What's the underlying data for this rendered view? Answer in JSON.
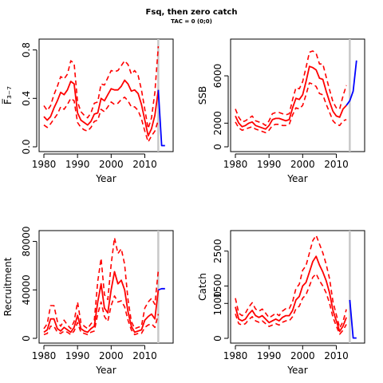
{
  "title": "Fsq, then zero catch",
  "subtitle": "TAC = 0 (0;0)",
  "colors": {
    "estimate": "#ff0000",
    "projection": "#0000ff",
    "divider": "#c8c8c8",
    "axis": "#000000"
  },
  "chart_data": [
    {
      "type": "line",
      "id": "f",
      "xlabel": "Year",
      "ylabel": "F̅₃₋₇",
      "xlim": [
        1980,
        2017
      ],
      "ylim": [
        0,
        0.85
      ],
      "xticks": [
        1980,
        1990,
        2000,
        2010
      ],
      "xtick_labels": [
        "1980",
        "1990",
        "2000",
        "2010"
      ],
      "yticks": [
        0,
        0.4,
        0.8
      ],
      "ytick_labels": [
        "0.0",
        "0.4",
        "0.8"
      ],
      "divider_x": 2014,
      "x": [
        1980,
        1981,
        1982,
        1983,
        1984,
        1985,
        1986,
        1987,
        1988,
        1989,
        1990,
        1991,
        1992,
        1993,
        1994,
        1995,
        1996,
        1997,
        1998,
        1999,
        2000,
        2001,
        2002,
        2003,
        2004,
        2005,
        2006,
        2007,
        2008,
        2009,
        2010,
        2011,
        2012,
        2013,
        2014
      ],
      "series": [
        {
          "role": "estimate",
          "style": "solid",
          "values": [
            0.25,
            0.22,
            0.25,
            0.32,
            0.38,
            0.45,
            0.43,
            0.47,
            0.54,
            0.52,
            0.28,
            0.22,
            0.2,
            0.18,
            0.21,
            0.27,
            0.28,
            0.4,
            0.38,
            0.43,
            0.48,
            0.47,
            0.47,
            0.5,
            0.55,
            0.52,
            0.46,
            0.47,
            0.44,
            0.35,
            0.22,
            0.09,
            0.15,
            0.26,
            0.47
          ]
        },
        {
          "role": "lower",
          "style": "dashed",
          "values": [
            0.18,
            0.16,
            0.19,
            0.23,
            0.27,
            0.33,
            0.31,
            0.35,
            0.4,
            0.38,
            0.2,
            0.16,
            0.14,
            0.13,
            0.16,
            0.21,
            0.22,
            0.31,
            0.29,
            0.33,
            0.37,
            0.35,
            0.36,
            0.39,
            0.41,
            0.38,
            0.33,
            0.33,
            0.3,
            0.23,
            0.13,
            0.04,
            0.09,
            0.13,
            0.22
          ]
        },
        {
          "role": "upper",
          "style": "dashed",
          "values": [
            0.34,
            0.3,
            0.34,
            0.43,
            0.5,
            0.58,
            0.56,
            0.6,
            0.71,
            0.69,
            0.37,
            0.29,
            0.26,
            0.24,
            0.28,
            0.36,
            0.37,
            0.52,
            0.51,
            0.57,
            0.63,
            0.62,
            0.63,
            0.67,
            0.71,
            0.68,
            0.6,
            0.63,
            0.59,
            0.47,
            0.31,
            0.15,
            0.24,
            0.45,
            0.83
          ]
        }
      ],
      "projection": {
        "x": [
          2014,
          2015,
          2016
        ],
        "values": [
          0.47,
          0.01,
          0.01
        ]
      }
    },
    {
      "type": "line",
      "id": "ssb",
      "xlabel": "Year",
      "ylabel": "SSB",
      "xlim": [
        1980,
        2017
      ],
      "ylim": [
        0,
        8700
      ],
      "xticks": [
        1980,
        1990,
        2000,
        2010
      ],
      "xtick_labels": [
        "1980",
        "1990",
        "2000",
        "2010"
      ],
      "yticks": [
        0,
        2000,
        6000
      ],
      "ytick_labels": [
        "0",
        "2000",
        "6000"
      ],
      "divider_x": 2014,
      "x": [
        1980,
        1981,
        1982,
        1983,
        1984,
        1985,
        1986,
        1987,
        1988,
        1989,
        1990,
        1991,
        1992,
        1993,
        1994,
        1995,
        1996,
        1997,
        1998,
        1999,
        2000,
        2001,
        2002,
        2003,
        2004,
        2005,
        2006,
        2007,
        2008,
        2009,
        2010,
        2011,
        2012,
        2013
      ],
      "series": [
        {
          "role": "estimate",
          "style": "solid",
          "values": [
            2600,
            2000,
            1700,
            1800,
            2000,
            2100,
            1800,
            1700,
            1600,
            1500,
            1800,
            2300,
            2400,
            2400,
            2300,
            2200,
            2300,
            3300,
            4100,
            4000,
            4400,
            5500,
            6800,
            6700,
            6500,
            5800,
            5700,
            4700,
            3800,
            3000,
            2600,
            2500,
            3200,
            3500
          ]
        },
        {
          "role": "lower",
          "style": "dashed",
          "values": [
            2100,
            1600,
            1400,
            1500,
            1600,
            1700,
            1500,
            1400,
            1300,
            1200,
            1400,
            1800,
            1900,
            1900,
            1800,
            1800,
            1900,
            2700,
            3300,
            3200,
            3500,
            4400,
            5400,
            5300,
            5100,
            4500,
            4400,
            3600,
            2900,
            2200,
            1900,
            1800,
            2200,
            2300
          ]
        },
        {
          "role": "upper",
          "style": "dashed",
          "values": [
            3200,
            2500,
            2100,
            2200,
            2400,
            2600,
            2200,
            2100,
            2000,
            1800,
            2200,
            2800,
            2900,
            2900,
            2800,
            2700,
            2800,
            4000,
            5000,
            4900,
            5500,
            6700,
            8000,
            8100,
            7900,
            7000,
            7000,
            5900,
            4800,
            3800,
            3300,
            3200,
            4300,
            5200
          ]
        }
      ],
      "projection": {
        "x": [
          2013,
          2014,
          2015,
          2016
        ],
        "values": [
          3500,
          3900,
          4700,
          7300
        ]
      }
    },
    {
      "type": "line",
      "id": "recruitment",
      "xlabel": "Year",
      "ylabel": "Recruitment",
      "xlim": [
        1980,
        2017
      ],
      "ylim": [
        0,
        85000
      ],
      "xticks": [
        1980,
        1990,
        2000,
        2010
      ],
      "xtick_labels": [
        "1980",
        "1990",
        "2000",
        "2010"
      ],
      "yticks": [
        0,
        40000,
        80000
      ],
      "ytick_labels": [
        "0",
        "40000",
        "80000"
      ],
      "divider_x": 2014,
      "x": [
        1980,
        1981,
        1982,
        1983,
        1984,
        1985,
        1986,
        1987,
        1988,
        1989,
        1990,
        1991,
        1992,
        1993,
        1994,
        1995,
        1996,
        1997,
        1998,
        1999,
        2000,
        2001,
        2002,
        2003,
        2004,
        2005,
        2006,
        2007,
        2008,
        2009,
        2010,
        2011,
        2012,
        2013,
        2014
      ],
      "series": [
        {
          "role": "estimate",
          "style": "solid",
          "values": [
            5000,
            7000,
            16000,
            16000,
            8000,
            6000,
            9000,
            7000,
            5000,
            9000,
            19000,
            8000,
            6000,
            5000,
            8000,
            10000,
            30000,
            45000,
            25000,
            21000,
            40000,
            55000,
            45000,
            48000,
            40000,
            22000,
            10000,
            5000,
            6000,
            7000,
            15000,
            18000,
            20000,
            16000,
            40000
          ]
        },
        {
          "role": "lower",
          "style": "dashed",
          "values": [
            3000,
            4000,
            10000,
            10000,
            5000,
            4000,
            6000,
            5000,
            3000,
            6000,
            13000,
            5000,
            4000,
            3000,
            5000,
            6000,
            20000,
            30000,
            18000,
            14000,
            27000,
            35000,
            30000,
            31000,
            26000,
            15000,
            7000,
            3000,
            4000,
            4000,
            9000,
            11000,
            12000,
            9000,
            20000
          ]
        },
        {
          "role": "upper",
          "style": "dashed",
          "values": [
            8000,
            12000,
            27000,
            27000,
            14000,
            10000,
            15000,
            11000,
            8000,
            14000,
            30000,
            13000,
            10000,
            8000,
            12000,
            15000,
            47000,
            66000,
            36000,
            32000,
            61000,
            83000,
            70000,
            74000,
            61000,
            32000,
            14000,
            8000,
            9000,
            10000,
            25000,
            30000,
            33000,
            28000,
            56000
          ]
        }
      ],
      "projection": {
        "x": [
          2014,
          2015,
          2016
        ],
        "values": [
          40000,
          41000,
          41000
        ]
      }
    },
    {
      "type": "line",
      "id": "catch",
      "xlabel": "Year",
      "ylabel": "Catch",
      "xlim": [
        1980,
        2017
      ],
      "ylim": [
        0,
        2950
      ],
      "xticks": [
        1980,
        1990,
        2000,
        2010
      ],
      "xtick_labels": [
        "1980",
        "1990",
        "2000",
        "2010"
      ],
      "yticks": [
        0,
        1000,
        1500,
        2500
      ],
      "ytick_labels": [
        "0",
        "1000",
        "1500",
        "2500"
      ],
      "divider_x": 2014,
      "x": [
        1980,
        1981,
        1982,
        1983,
        1984,
        1985,
        1986,
        1987,
        1988,
        1989,
        1990,
        1991,
        1992,
        1993,
        1994,
        1995,
        1996,
        1997,
        1998,
        1999,
        2000,
        2001,
        2002,
        2003,
        2004,
        2005,
        2006,
        2007,
        2008,
        2009,
        2010,
        2011,
        2012,
        2013
      ],
      "series": [
        {
          "role": "estimate",
          "style": "solid",
          "values": [
            900,
            550,
            500,
            550,
            700,
            800,
            650,
            600,
            650,
            550,
            450,
            500,
            550,
            500,
            600,
            650,
            650,
            800,
            1100,
            1200,
            1500,
            1600,
            1900,
            2200,
            2350,
            2100,
            1900,
            1650,
            1300,
            800,
            500,
            200,
            350,
            600
          ]
        },
        {
          "role": "lower",
          "style": "dashed",
          "values": [
            700,
            420,
            380,
            420,
            540,
            620,
            500,
            460,
            500,
            420,
            340,
            380,
            420,
            380,
            460,
            500,
            500,
            620,
            850,
            920,
            1150,
            1250,
            1500,
            1750,
            1850,
            1650,
            1500,
            1300,
            1000,
            600,
            350,
            120,
            230,
            400
          ]
        },
        {
          "role": "upper",
          "style": "dashed",
          "values": [
            1150,
            720,
            650,
            720,
            900,
            1020,
            840,
            780,
            840,
            720,
            590,
            650,
            720,
            650,
            780,
            850,
            850,
            1050,
            1430,
            1550,
            1950,
            2080,
            2450,
            2800,
            2950,
            2700,
            2450,
            2120,
            1700,
            1050,
            680,
            300,
            480,
            830
          ]
        }
      ],
      "projection": {
        "x": [
          2014,
          2015,
          2016
        ],
        "values": [
          1100,
          10,
          10
        ]
      }
    }
  ]
}
